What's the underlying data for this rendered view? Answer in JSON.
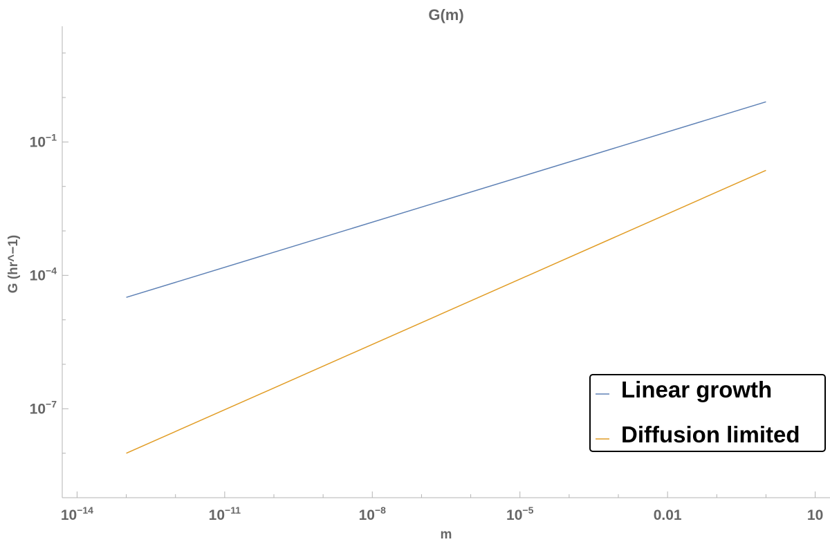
{
  "chart_data": {
    "type": "line",
    "title": "G(m)",
    "xlabel": "m",
    "ylabel": "G (hr^−1)",
    "xscale": "log",
    "yscale": "log",
    "xlim": [
      5e-15,
      20
    ],
    "ylim": [
      1e-09,
      40
    ],
    "x_ticks": [
      {
        "base": "10",
        "exp": "−14",
        "value": 1e-14
      },
      {
        "base": "10",
        "exp": "−11",
        "value": 1e-11
      },
      {
        "base": "10",
        "exp": "−8",
        "value": 1e-08
      },
      {
        "base": "10",
        "exp": "−5",
        "value": 1e-05
      },
      {
        "base": "0.01",
        "exp": "",
        "value": 0.01
      },
      {
        "base": "10",
        "exp": "",
        "value": 10
      }
    ],
    "y_ticks": [
      {
        "base": "10",
        "exp": "−1",
        "value": 0.1
      },
      {
        "base": "10",
        "exp": "−4",
        "value": 0.0001
      },
      {
        "base": "10",
        "exp": "−7",
        "value": 1e-07
      }
    ],
    "series": [
      {
        "name": "Linear growth",
        "color": "#5e81b5",
        "x": [
          1e-13,
          1
        ],
        "y": [
          3.2e-05,
          0.8
        ]
      },
      {
        "name": "Diffusion limited",
        "color": "#e19c24",
        "x": [
          1e-13,
          1
        ],
        "y": [
          1e-08,
          0.023
        ]
      }
    ],
    "legend": {
      "position": "bottom-right",
      "border": true
    }
  }
}
